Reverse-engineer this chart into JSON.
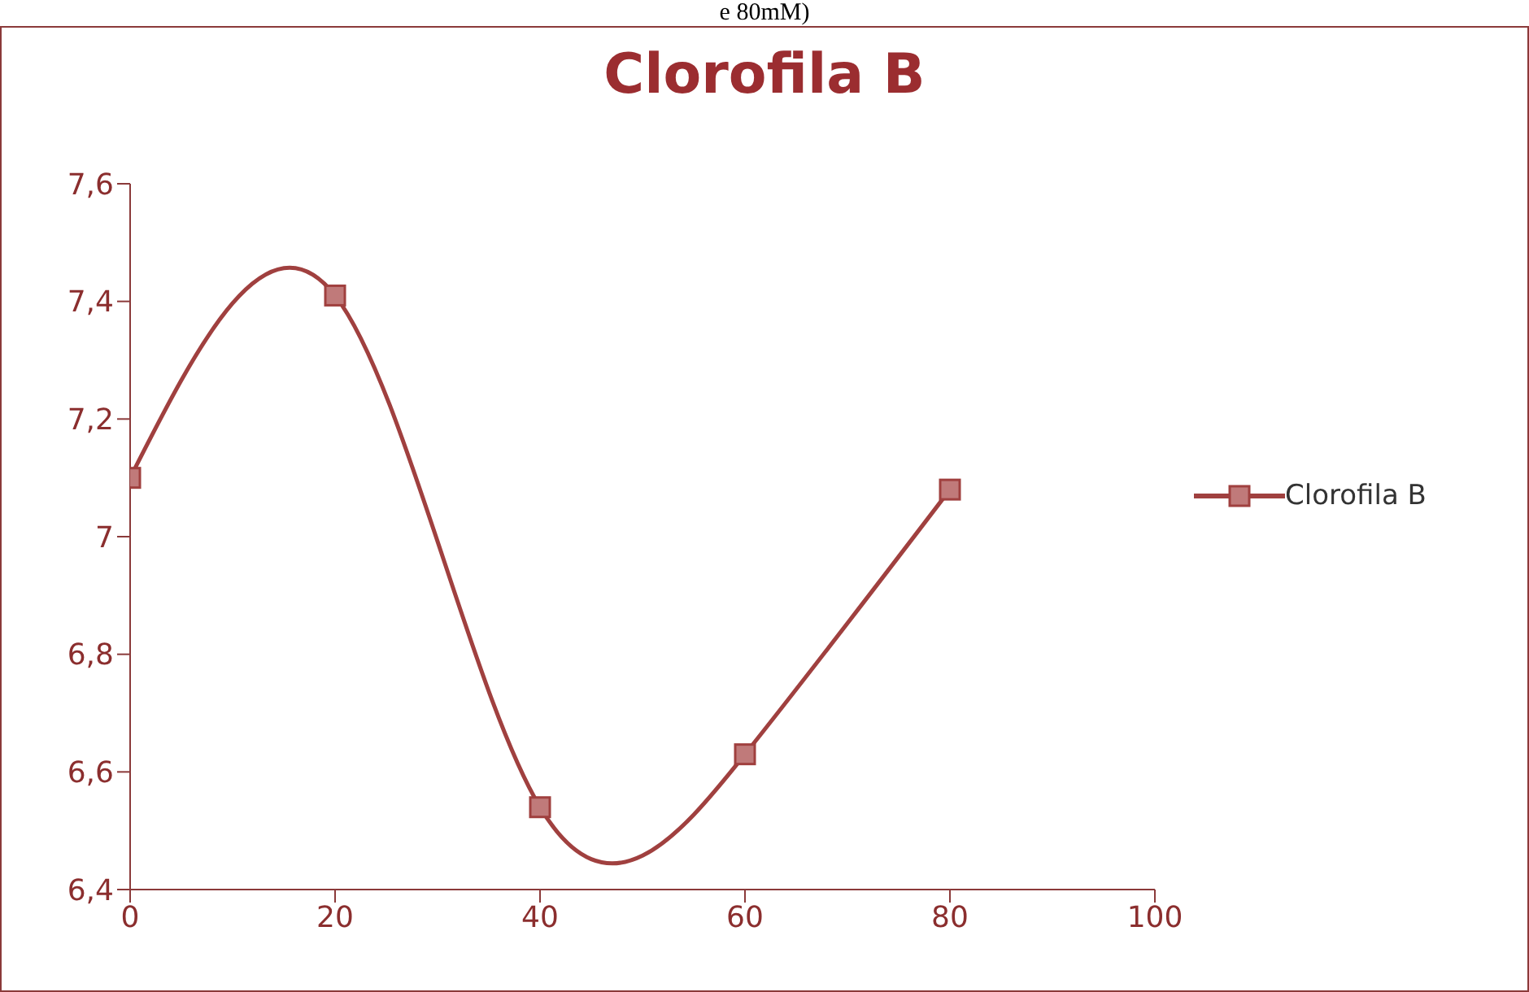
{
  "chart_data": {
    "type": "line",
    "title": "Clorofila B",
    "annotations": [
      "e 80mM)"
    ],
    "x": [
      0,
      20,
      40,
      60,
      80
    ],
    "series": [
      {
        "name": "Clorofila B",
        "color": "#a0403f",
        "values": [
          7.1,
          7.41,
          6.54,
          6.63,
          7.08
        ]
      }
    ],
    "xlim": [
      0,
      100
    ],
    "xticks": [
      0,
      20,
      40,
      60,
      80,
      100
    ],
    "ylim": [
      6.4,
      7.6
    ],
    "yticks": [
      {
        "value": 6.4,
        "label": "6,4"
      },
      {
        "value": 6.6,
        "label": "6,6"
      },
      {
        "value": 6.8,
        "label": "6,8"
      },
      {
        "value": 7,
        "label": "7"
      },
      {
        "value": 7.2,
        "label": "7,2"
      },
      {
        "value": 7.4,
        "label": "7,4"
      },
      {
        "value": 7.6,
        "label": "7,6"
      }
    ],
    "grid": false,
    "legend": "right",
    "marker": "square",
    "line_style": "solid"
  }
}
